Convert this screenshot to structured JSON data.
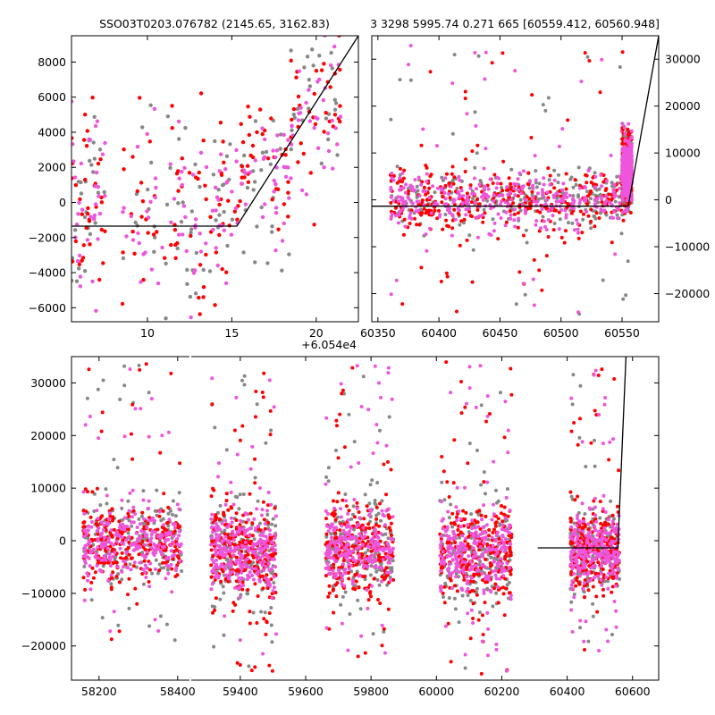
{
  "titles": {
    "left": "SSO03T0203.076782 (2145.65, 3162.83)",
    "right": "3 3298 5995.74 0.271 665 [60559.412, 60560.948]"
  },
  "colors": {
    "red": "#ff0000",
    "violet": "#ee55dd",
    "gray": "#888888",
    "model": "#000000"
  },
  "chart_data": [
    {
      "id": "top-left",
      "type": "scatter",
      "title": "",
      "xlabel": "",
      "ylabel": "",
      "x_offset_label": "+6.054e4",
      "xlim": [
        5.5,
        22.5
      ],
      "ylim": [
        -6800,
        9500
      ],
      "xticks": [
        10,
        15,
        20
      ],
      "yticks": [
        -6000,
        -4000,
        -2000,
        0,
        2000,
        4000,
        6000,
        8000
      ],
      "ytick_side": "left",
      "model": {
        "x": [
          5.5,
          15.3,
          22.5
        ],
        "y": [
          -1350,
          -1350,
          9500
        ]
      },
      "clusters": [
        {
          "x": [
            5.5,
            7.5
          ],
          "y": [
            -6500,
            6000
          ],
          "center": 200,
          "spread": 2800
        },
        {
          "x": [
            8.5,
            12.5
          ],
          "y": [
            -6000,
            5500
          ],
          "center": -200,
          "spread": 2200
        },
        {
          "x": [
            12.5,
            15.5
          ],
          "y": [
            -6200,
            3500
          ],
          "center": -500,
          "spread": 2200
        },
        {
          "x": [
            15.5,
            18.5
          ],
          "y": [
            -4000,
            5500
          ],
          "center": 1800,
          "spread": 1800
        },
        {
          "x": [
            18.5,
            21.5
          ],
          "y": [
            1000,
            9000
          ],
          "center": 5000,
          "spread": 2000
        }
      ]
    },
    {
      "id": "top-right",
      "type": "scatter",
      "title": "",
      "xlabel": "",
      "ylabel": "",
      "xlim": [
        60345,
        60580
      ],
      "ylim": [
        -26000,
        35000
      ],
      "xticks": [
        60350,
        60400,
        60450,
        60500,
        60550
      ],
      "yticks": [
        -20000,
        -10000,
        0,
        10000,
        20000,
        30000
      ],
      "ytick_side": "right",
      "model": {
        "x": [
          60345,
          60555,
          60580
        ],
        "y": [
          -1350,
          -1350,
          35000
        ]
      },
      "clusters": [
        {
          "x": [
            60360,
            60555
          ],
          "y": [
            -25000,
            33000
          ],
          "center": 0,
          "spread": 3000
        },
        {
          "x": [
            60550,
            60558
          ],
          "y": [
            0,
            15000
          ],
          "center": 6000,
          "spread": 3000
        }
      ]
    },
    {
      "id": "bottom",
      "type": "scatter",
      "title": "",
      "xlabel": "",
      "ylabel": "",
      "xlim": [
        58130,
        60680
      ],
      "ylim": [
        -26500,
        35000
      ],
      "xticks": [
        58200,
        58400,
        59400,
        59600,
        59800,
        60000,
        60200,
        60400,
        60600
      ],
      "yticks": [
        -20000,
        -10000,
        0,
        10000,
        20000,
        30000
      ],
      "ytick_side": "left",
      "axis_break": 58430,
      "model": {
        "x": [
          60310,
          60555,
          60580
        ],
        "y": [
          -1350,
          -1350,
          35000
        ]
      },
      "clusters": [
        {
          "x": [
            58160,
            58410
          ],
          "y": [
            -20000,
            34000
          ],
          "center": 0,
          "spread": 3500
        },
        {
          "x": [
            59310,
            59510
          ],
          "y": [
            -25000,
            32000
          ],
          "center": -2500,
          "spread": 4000
        },
        {
          "x": [
            59660,
            59870
          ],
          "y": [
            -22000,
            35000
          ],
          "center": -1500,
          "spread": 3800
        },
        {
          "x": [
            60010,
            60230
          ],
          "y": [
            -26000,
            34000
          ],
          "center": -2500,
          "spread": 4000
        },
        {
          "x": [
            60410,
            60560
          ],
          "y": [
            -22000,
            33000
          ],
          "center": -1500,
          "spread": 3500
        }
      ]
    }
  ]
}
